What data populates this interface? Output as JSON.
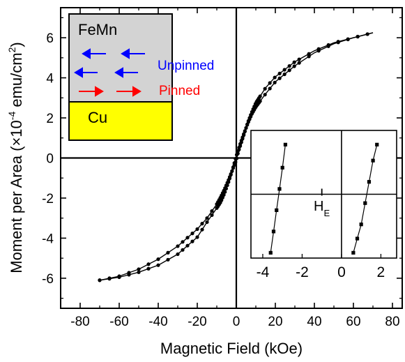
{
  "chart_data": [
    {
      "type": "line",
      "xlabel": "Magnetic Field (kOe)",
      "ylabel": {
        "prefix": "Moment per Area (",
        "times": "×",
        "base": "10",
        "exp": "-4",
        "unit": " emu/cm",
        "unit_exp": "2",
        "suffix": ")"
      },
      "xlim": [
        -90,
        85
      ],
      "ylim": [
        -7.5,
        7.5
      ],
      "xticks": [
        -80,
        -60,
        -40,
        -20,
        0,
        20,
        40,
        60,
        80
      ],
      "yticks": [
        -6,
        -4,
        -2,
        0,
        2,
        4,
        6
      ],
      "grid": false,
      "series": [
        {
          "branch": "descending",
          "x": [
            70,
            60,
            50,
            40,
            30,
            20,
            15,
            10,
            8,
            6,
            4,
            2,
            1,
            0,
            -1,
            -2,
            -4,
            -6,
            -8,
            -10,
            -15,
            -20,
            -30,
            -40,
            -50,
            -60,
            -70
          ],
          "y": [
            6.25,
            6.0,
            5.7,
            5.25,
            4.6,
            3.8,
            3.2,
            2.55,
            2.2,
            1.75,
            1.25,
            0.7,
            0.4,
            0.1,
            -0.25,
            -0.6,
            -1.2,
            -1.75,
            -2.2,
            -2.5,
            -3.2,
            -3.95,
            -4.8,
            -5.35,
            -5.7,
            -5.95,
            -6.1
          ]
        },
        {
          "branch": "ascending",
          "x": [
            -70,
            -60,
            -50,
            -40,
            -30,
            -20,
            -15,
            -10,
            -8,
            -6,
            -4,
            -2,
            0,
            1,
            2,
            3,
            4,
            6,
            8,
            10,
            15,
            20,
            30,
            40,
            50,
            60,
            70
          ],
          "y": [
            -6.1,
            -5.9,
            -5.55,
            -5.05,
            -4.4,
            -3.55,
            -3.0,
            -2.3,
            -1.95,
            -1.55,
            -1.1,
            -0.6,
            -0.1,
            0.3,
            0.6,
            0.9,
            1.2,
            1.8,
            2.3,
            2.75,
            3.5,
            4.05,
            4.8,
            5.35,
            5.75,
            6.0,
            6.25
          ]
        }
      ],
      "reference_lines": {
        "x": 0,
        "y": 0
      }
    },
    {
      "type": "line",
      "role": "inset",
      "xlim": [
        -4.6,
        2.8
      ],
      "ylim": [
        -3.6,
        3.6
      ],
      "xticks": [
        -4,
        -2,
        0,
        2
      ],
      "series": [
        {
          "branch": "left",
          "x": [
            -3.6,
            -3.45,
            -3.3,
            -3.15,
            -3.0,
            -2.85
          ],
          "y": [
            -3.3,
            -2.1,
            -0.9,
            0.3,
            1.5,
            2.8
          ]
        },
        {
          "branch": "right",
          "x": [
            0.6,
            0.8,
            1.0,
            1.2,
            1.4,
            1.6,
            1.8
          ],
          "y": [
            -3.3,
            -2.5,
            -1.7,
            -0.5,
            0.7,
            1.9,
            2.8
          ]
        }
      ],
      "h_line_y": 0,
      "marker_x": -1.0,
      "annotation": {
        "main": "H",
        "sub": "E"
      }
    }
  ],
  "schematic": {
    "top_layer": "FeMn",
    "bottom_layer": "Cu",
    "unpinned_label": "Unpinned",
    "pinned_label": "Pinned",
    "colors": {
      "top_fill": "#d3d3d3",
      "bottom_fill": "#ffff00",
      "unpinned": "#0000ff",
      "pinned": "#ff0000"
    }
  }
}
